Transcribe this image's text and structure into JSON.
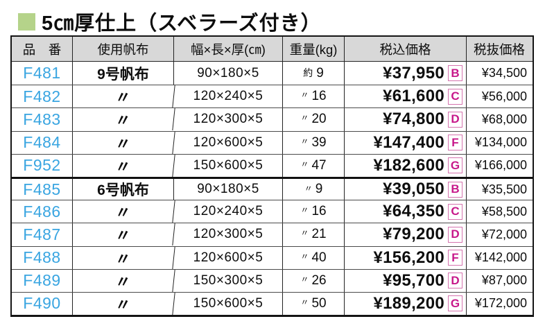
{
  "title": {
    "text": "5㎝厚仕上（スベラーズ付き）",
    "bullet_color": "#b5d38a"
  },
  "colors": {
    "product_code_blue": "#39a5e1",
    "badge_magenta": "#c7188a",
    "header_bg": "#d8d8d8",
    "title_green": "#b5d38a"
  },
  "table": {
    "headers": [
      "品　番",
      "使用帆布",
      "幅×長×厚(㎝)",
      "重量(kg)",
      "税込価格",
      "税抜価格"
    ],
    "rows": [
      {
        "code": "F481",
        "canvas": "9号帆布",
        "canvas_ditto": false,
        "size": "90×180×5",
        "weight_prefix": "約",
        "weight": "9",
        "price_incl": "¥37,950",
        "badge": "B",
        "price_excl": "¥34,500",
        "group_start": false
      },
      {
        "code": "F482",
        "canvas": "〃",
        "canvas_ditto": true,
        "size": "120×240×5",
        "weight_prefix": "〃",
        "weight": "16",
        "price_incl": "¥61,600",
        "badge": "C",
        "price_excl": "¥56,000",
        "group_start": false
      },
      {
        "code": "F483",
        "canvas": "〃",
        "canvas_ditto": true,
        "size": "120×300×5",
        "weight_prefix": "〃",
        "weight": "20",
        "price_incl": "¥74,800",
        "badge": "D",
        "price_excl": "¥68,000",
        "group_start": false
      },
      {
        "code": "F484",
        "canvas": "〃",
        "canvas_ditto": true,
        "size": "120×600×5",
        "weight_prefix": "〃",
        "weight": "39",
        "price_incl": "¥147,400",
        "badge": "F",
        "price_excl": "¥134,000",
        "group_start": false
      },
      {
        "code": "F952",
        "canvas": "〃",
        "canvas_ditto": true,
        "size": "150×600×5",
        "weight_prefix": "〃",
        "weight": "47",
        "price_incl": "¥182,600",
        "badge": "G",
        "price_excl": "¥166,000",
        "group_start": false
      },
      {
        "code": "F485",
        "canvas": "6号帆布",
        "canvas_ditto": false,
        "size": "90×180×5",
        "weight_prefix": "〃",
        "weight": "9",
        "price_incl": "¥39,050",
        "badge": "B",
        "price_excl": "¥35,500",
        "group_start": true
      },
      {
        "code": "F486",
        "canvas": "〃",
        "canvas_ditto": true,
        "size": "120×240×5",
        "weight_prefix": "〃",
        "weight": "16",
        "price_incl": "¥64,350",
        "badge": "C",
        "price_excl": "¥58,500",
        "group_start": false
      },
      {
        "code": "F487",
        "canvas": "〃",
        "canvas_ditto": true,
        "size": "120×300×5",
        "weight_prefix": "〃",
        "weight": "21",
        "price_incl": "¥79,200",
        "badge": "D",
        "price_excl": "¥72,000",
        "group_start": false
      },
      {
        "code": "F488",
        "canvas": "〃",
        "canvas_ditto": true,
        "size": "120×600×5",
        "weight_prefix": "〃",
        "weight": "40",
        "price_incl": "¥156,200",
        "badge": "F",
        "price_excl": "¥142,000",
        "group_start": false
      },
      {
        "code": "F489",
        "canvas": "〃",
        "canvas_ditto": true,
        "size": "150×300×5",
        "weight_prefix": "〃",
        "weight": "26",
        "price_incl": "¥95,700",
        "badge": "D",
        "price_excl": "¥87,000",
        "group_start": false
      },
      {
        "code": "F490",
        "canvas": "〃",
        "canvas_ditto": true,
        "size": "150×600×5",
        "weight_prefix": "〃",
        "weight": "50",
        "price_incl": "¥189,200",
        "badge": "G",
        "price_excl": "¥172,000",
        "group_start": false
      }
    ]
  }
}
